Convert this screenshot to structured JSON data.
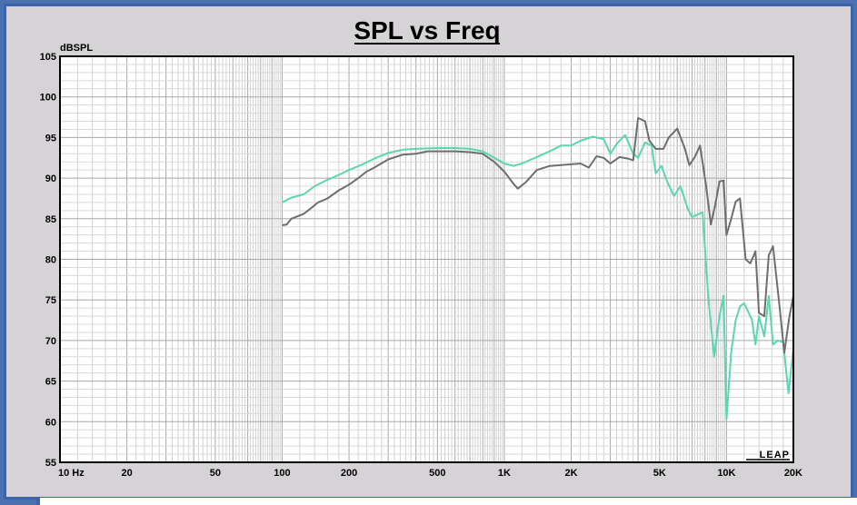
{
  "chart_data": {
    "type": "line",
    "title": "SPL vs Freq",
    "ylabel": "dBSPL",
    "xlabel": "",
    "x_scale": "log",
    "xlim": [
      10,
      20000
    ],
    "ylim": [
      55,
      105
    ],
    "grid": true,
    "x_tick_labels": [
      {
        "x": 10,
        "label": "10  Hz"
      },
      {
        "x": 20,
        "label": "20"
      },
      {
        "x": 50,
        "label": "50"
      },
      {
        "x": 100,
        "label": "100"
      },
      {
        "x": 200,
        "label": "200"
      },
      {
        "x": 500,
        "label": "500"
      },
      {
        "x": 1000,
        "label": "1K"
      },
      {
        "x": 2000,
        "label": "2K"
      },
      {
        "x": 5000,
        "label": "5K"
      },
      {
        "x": 10000,
        "label": "10K"
      },
      {
        "x": 20000,
        "label": "20K"
      }
    ],
    "y_ticks": [
      55,
      60,
      65,
      70,
      75,
      80,
      85,
      90,
      95,
      100,
      105
    ],
    "logo": "LEAP",
    "series": [
      {
        "color": "#5ad6b0",
        "points": [
          [
            100,
            87.0
          ],
          [
            110,
            87.6
          ],
          [
            125,
            88.0
          ],
          [
            140,
            89.0
          ],
          [
            160,
            89.8
          ],
          [
            180,
            90.4
          ],
          [
            200,
            91.0
          ],
          [
            230,
            91.7
          ],
          [
            260,
            92.4
          ],
          [
            300,
            93.1
          ],
          [
            350,
            93.5
          ],
          [
            400,
            93.6
          ],
          [
            500,
            93.7
          ],
          [
            600,
            93.7
          ],
          [
            700,
            93.6
          ],
          [
            800,
            93.3
          ],
          [
            900,
            92.5
          ],
          [
            1000,
            91.8
          ],
          [
            1100,
            91.5
          ],
          [
            1200,
            91.8
          ],
          [
            1400,
            92.6
          ],
          [
            1600,
            93.3
          ],
          [
            1800,
            94.0
          ],
          [
            2000,
            94.0
          ],
          [
            2200,
            94.6
          ],
          [
            2500,
            95.1
          ],
          [
            2800,
            94.8
          ],
          [
            3000,
            93.0
          ],
          [
            3200,
            94.2
          ],
          [
            3500,
            95.3
          ],
          [
            3800,
            93.0
          ],
          [
            4000,
            92.5
          ],
          [
            4300,
            94.4
          ],
          [
            4600,
            94.0
          ],
          [
            4800,
            90.6
          ],
          [
            5100,
            91.5
          ],
          [
            5400,
            89.6
          ],
          [
            5800,
            87.8
          ],
          [
            6200,
            89.0
          ],
          [
            6700,
            86.2
          ],
          [
            7000,
            85.2
          ],
          [
            7400,
            85.5
          ],
          [
            7800,
            85.8
          ],
          [
            8300,
            75.0
          ],
          [
            8800,
            68.0
          ],
          [
            9300,
            73.0
          ],
          [
            9700,
            75.5
          ],
          [
            10000,
            60.3
          ],
          [
            10500,
            68.6
          ],
          [
            11000,
            72.5
          ],
          [
            11500,
            74.2
          ],
          [
            12000,
            74.6
          ],
          [
            13000,
            72.6
          ],
          [
            13500,
            69.5
          ],
          [
            14000,
            73.0
          ],
          [
            14800,
            70.5
          ],
          [
            15500,
            75.5
          ],
          [
            16200,
            69.5
          ],
          [
            17000,
            70.0
          ],
          [
            18000,
            69.8
          ],
          [
            19000,
            63.5
          ],
          [
            20000,
            69.0
          ]
        ]
      },
      {
        "color": "#6e6e6e",
        "points": [
          [
            100,
            84.2
          ],
          [
            105,
            84.3
          ],
          [
            110,
            85.0
          ],
          [
            125,
            85.6
          ],
          [
            135,
            86.3
          ],
          [
            145,
            87.0
          ],
          [
            160,
            87.5
          ],
          [
            180,
            88.5
          ],
          [
            200,
            89.2
          ],
          [
            220,
            90.0
          ],
          [
            240,
            90.8
          ],
          [
            260,
            91.3
          ],
          [
            300,
            92.3
          ],
          [
            350,
            92.9
          ],
          [
            400,
            93.0
          ],
          [
            450,
            93.3
          ],
          [
            500,
            93.3
          ],
          [
            600,
            93.3
          ],
          [
            700,
            93.2
          ],
          [
            800,
            93.0
          ],
          [
            900,
            92.0
          ],
          [
            1000,
            90.8
          ],
          [
            1100,
            89.3
          ],
          [
            1150,
            88.7
          ],
          [
            1250,
            89.5
          ],
          [
            1400,
            91.0
          ],
          [
            1600,
            91.5
          ],
          [
            1800,
            91.6
          ],
          [
            2000,
            91.7
          ],
          [
            2200,
            91.8
          ],
          [
            2400,
            91.3
          ],
          [
            2600,
            92.7
          ],
          [
            2800,
            92.5
          ],
          [
            3000,
            91.8
          ],
          [
            3300,
            92.6
          ],
          [
            3600,
            92.4
          ],
          [
            3800,
            92.2
          ],
          [
            4000,
            97.4
          ],
          [
            4300,
            97.0
          ],
          [
            4500,
            94.6
          ],
          [
            4800,
            93.6
          ],
          [
            5200,
            93.6
          ],
          [
            5500,
            95.0
          ],
          [
            6000,
            96.1
          ],
          [
            6500,
            93.6
          ],
          [
            6800,
            91.6
          ],
          [
            7200,
            92.6
          ],
          [
            7600,
            94.0
          ],
          [
            8100,
            89.0
          ],
          [
            8500,
            84.3
          ],
          [
            8900,
            86.7
          ],
          [
            9300,
            89.6
          ],
          [
            9700,
            89.7
          ],
          [
            10000,
            83.0
          ],
          [
            10500,
            85.0
          ],
          [
            11000,
            87.1
          ],
          [
            11500,
            87.5
          ],
          [
            12200,
            80.0
          ],
          [
            12800,
            79.5
          ],
          [
            13500,
            81.0
          ],
          [
            14000,
            73.4
          ],
          [
            14800,
            73.0
          ],
          [
            15500,
            80.5
          ],
          [
            16200,
            81.6
          ],
          [
            17200,
            75.0
          ],
          [
            18200,
            68.5
          ],
          [
            19200,
            73.0
          ],
          [
            20000,
            75.5
          ]
        ]
      }
    ]
  }
}
